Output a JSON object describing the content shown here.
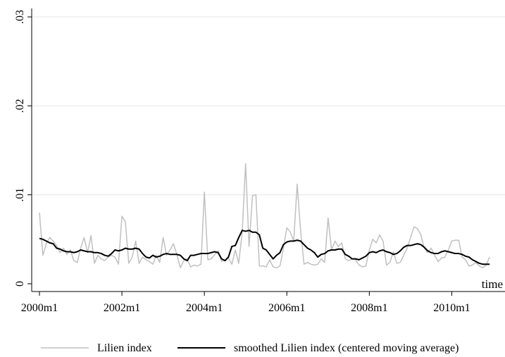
{
  "chart_data": {
    "type": "line",
    "xlabel": "time",
    "ylabel": "",
    "xlim": [
      2000.0,
      2011.0
    ],
    "ylim": [
      0,
      0.03
    ],
    "x_ticks": [
      {
        "value": 2000,
        "label": "2000m1"
      },
      {
        "value": 2002,
        "label": "2002m1"
      },
      {
        "value": 2004,
        "label": "2004m1"
      },
      {
        "value": 2006,
        "label": "2006m1"
      },
      {
        "value": 2008,
        "label": "2008m1"
      },
      {
        "value": 2010,
        "label": "2010m1"
      }
    ],
    "y_ticks": [
      {
        "value": 0,
        "label": "0"
      },
      {
        "value": 0.01,
        "label": ".01"
      },
      {
        "value": 0.02,
        "label": ".02"
      },
      {
        "value": 0.03,
        "label": ".03"
      }
    ],
    "grid": true,
    "legend_position": "bottom",
    "series": [
      {
        "name": "Lilien index",
        "color": "#c0c0c0",
        "x": [
          2000.0,
          2000.083,
          2000.167,
          2000.25,
          2000.333,
          2000.417,
          2000.5,
          2000.583,
          2000.667,
          2000.75,
          2000.833,
          2000.917,
          2001.0,
          2001.083,
          2001.167,
          2001.25,
          2001.333,
          2001.417,
          2001.5,
          2001.583,
          2001.667,
          2001.75,
          2001.833,
          2001.917,
          2002.0,
          2002.083,
          2002.167,
          2002.25,
          2002.333,
          2002.417,
          2002.5,
          2002.583,
          2002.667,
          2002.75,
          2002.833,
          2002.917,
          2003.0,
          2003.083,
          2003.167,
          2003.25,
          2003.333,
          2003.417,
          2003.5,
          2003.583,
          2003.667,
          2003.75,
          2003.833,
          2003.917,
          2004.0,
          2004.083,
          2004.167,
          2004.25,
          2004.333,
          2004.417,
          2004.5,
          2004.583,
          2004.667,
          2004.75,
          2004.833,
          2004.917,
          2005.0,
          2005.083,
          2005.167,
          2005.25,
          2005.333,
          2005.417,
          2005.5,
          2005.583,
          2005.667,
          2005.75,
          2005.833,
          2005.917,
          2006.0,
          2006.083,
          2006.167,
          2006.25,
          2006.333,
          2006.417,
          2006.5,
          2006.583,
          2006.667,
          2006.75,
          2006.833,
          2006.917,
          2007.0,
          2007.083,
          2007.167,
          2007.25,
          2007.333,
          2007.417,
          2007.5,
          2007.583,
          2007.667,
          2007.75,
          2007.833,
          2007.917,
          2008.0,
          2008.083,
          2008.167,
          2008.25,
          2008.333,
          2008.417,
          2008.5,
          2008.583,
          2008.667,
          2008.75,
          2008.833,
          2008.917,
          2009.0,
          2009.083,
          2009.167,
          2009.25,
          2009.333,
          2009.417,
          2009.5,
          2009.583,
          2009.667,
          2009.75,
          2009.833,
          2009.917,
          2010.0,
          2010.083,
          2010.167,
          2010.25,
          2010.333,
          2010.417,
          2010.5,
          2010.583,
          2010.667,
          2010.75,
          2010.833,
          2010.917
        ],
        "y": [
          0.008,
          0.0032,
          0.0045,
          0.0052,
          0.0048,
          0.0043,
          0.0035,
          0.004,
          0.0033,
          0.0038,
          0.0026,
          0.0024,
          0.004,
          0.0052,
          0.0035,
          0.0054,
          0.0023,
          0.0032,
          0.0028,
          0.0026,
          0.003,
          0.0032,
          0.003,
          0.0022,
          0.0076,
          0.007,
          0.0023,
          0.003,
          0.0048,
          0.0023,
          0.003,
          0.0027,
          0.0025,
          0.0022,
          0.0032,
          0.0024,
          0.0052,
          0.0032,
          0.0038,
          0.0045,
          0.0033,
          0.0018,
          0.0026,
          0.0028,
          0.0019,
          0.0021,
          0.002,
          0.0022,
          0.0103,
          0.0027,
          0.0028,
          0.0033,
          0.0037,
          0.0025,
          0.0027,
          0.0029,
          0.0022,
          0.0038,
          0.0023,
          0.0058,
          0.0135,
          0.0042,
          0.0099,
          0.01,
          0.002,
          0.002,
          0.0019,
          0.0027,
          0.0019,
          0.0018,
          0.002,
          0.004,
          0.0063,
          0.0058,
          0.0048,
          0.0112,
          0.006,
          0.0022,
          0.0024,
          0.0022,
          0.0021,
          0.0022,
          0.0028,
          0.0024,
          0.0074,
          0.0038,
          0.0048,
          0.0042,
          0.0046,
          0.0028,
          0.0026,
          0.0028,
          0.0027,
          0.0021,
          0.0019,
          0.002,
          0.0038,
          0.005,
          0.0046,
          0.0055,
          0.0048,
          0.0021,
          0.0024,
          0.0036,
          0.0023,
          0.0024,
          0.0032,
          0.004,
          0.0052,
          0.0064,
          0.0062,
          0.0055,
          0.004,
          0.0035,
          0.004,
          0.0032,
          0.0025,
          0.0029,
          0.003,
          0.0038,
          0.0048,
          0.0049,
          0.0049,
          0.003,
          0.0027,
          0.002,
          0.0021,
          0.0024,
          0.002,
          0.0018,
          0.0021,
          0.003
        ]
      },
      {
        "name": "smoothed Lilien index (centered moving average)",
        "color": "#000000",
        "x": [
          2000.0,
          2000.083,
          2000.167,
          2000.25,
          2000.333,
          2000.417,
          2000.5,
          2000.583,
          2000.667,
          2000.75,
          2000.833,
          2000.917,
          2001.0,
          2001.083,
          2001.167,
          2001.25,
          2001.333,
          2001.417,
          2001.5,
          2001.583,
          2001.667,
          2001.75,
          2001.833,
          2001.917,
          2002.0,
          2002.083,
          2002.167,
          2002.25,
          2002.333,
          2002.417,
          2002.5,
          2002.583,
          2002.667,
          2002.75,
          2002.833,
          2002.917,
          2003.0,
          2003.083,
          2003.167,
          2003.25,
          2003.333,
          2003.417,
          2003.5,
          2003.583,
          2003.667,
          2003.75,
          2003.833,
          2003.917,
          2004.0,
          2004.083,
          2004.167,
          2004.25,
          2004.333,
          2004.417,
          2004.5,
          2004.583,
          2004.667,
          2004.75,
          2004.833,
          2004.917,
          2005.0,
          2005.083,
          2005.167,
          2005.25,
          2005.333,
          2005.417,
          2005.5,
          2005.583,
          2005.667,
          2005.75,
          2005.833,
          2005.917,
          2006.0,
          2006.083,
          2006.167,
          2006.25,
          2006.333,
          2006.417,
          2006.5,
          2006.583,
          2006.667,
          2006.75,
          2006.833,
          2006.917,
          2007.0,
          2007.083,
          2007.167,
          2007.25,
          2007.333,
          2007.417,
          2007.5,
          2007.583,
          2007.667,
          2007.75,
          2007.833,
          2007.917,
          2008.0,
          2008.083,
          2008.167,
          2008.25,
          2008.333,
          2008.417,
          2008.5,
          2008.583,
          2008.667,
          2008.75,
          2008.833,
          2008.917,
          2009.0,
          2009.083,
          2009.167,
          2009.25,
          2009.333,
          2009.417,
          2009.5,
          2009.583,
          2009.667,
          2009.75,
          2009.833,
          2009.917,
          2010.0,
          2010.083,
          2010.167,
          2010.25,
          2010.333,
          2010.417,
          2010.5,
          2010.583,
          2010.667,
          2010.75,
          2010.833,
          2010.917
        ],
        "y": [
          0.0051,
          0.005,
          0.0048,
          0.0046,
          0.0045,
          0.004,
          0.0039,
          0.0037,
          0.0036,
          0.0036,
          0.0035,
          0.0036,
          0.0038,
          0.0037,
          0.0036,
          0.0036,
          0.0035,
          0.0035,
          0.0034,
          0.0032,
          0.0031,
          0.0034,
          0.0038,
          0.0037,
          0.0038,
          0.004,
          0.0039,
          0.0039,
          0.004,
          0.0039,
          0.0034,
          0.003,
          0.0029,
          0.0032,
          0.003,
          0.0031,
          0.0033,
          0.0034,
          0.0033,
          0.0033,
          0.0033,
          0.0032,
          0.0028,
          0.0026,
          0.0032,
          0.0032,
          0.0033,
          0.0034,
          0.0034,
          0.0034,
          0.0035,
          0.0036,
          0.0035,
          0.0028,
          0.0026,
          0.003,
          0.0042,
          0.0043,
          0.0052,
          0.006,
          0.0059,
          0.006,
          0.0058,
          0.0058,
          0.0055,
          0.004,
          0.0038,
          0.0033,
          0.0028,
          0.0032,
          0.0035,
          0.0044,
          0.0047,
          0.0048,
          0.0048,
          0.0049,
          0.0048,
          0.0044,
          0.004,
          0.0038,
          0.0035,
          0.003,
          0.0033,
          0.0034,
          0.0037,
          0.0038,
          0.0038,
          0.0039,
          0.0039,
          0.0033,
          0.0031,
          0.0028,
          0.0028,
          0.0027,
          0.0029,
          0.0031,
          0.0035,
          0.0036,
          0.0035,
          0.0037,
          0.0038,
          0.0036,
          0.0035,
          0.0033,
          0.0034,
          0.0037,
          0.0041,
          0.0043,
          0.0043,
          0.0044,
          0.0045,
          0.0044,
          0.0041,
          0.0037,
          0.0035,
          0.0034,
          0.0034,
          0.0036,
          0.0037,
          0.0036,
          0.0035,
          0.0034,
          0.0034,
          0.0033,
          0.0031,
          0.003,
          0.0027,
          0.0025,
          0.0023,
          0.0022,
          0.0022,
          0.0022
        ]
      }
    ]
  }
}
